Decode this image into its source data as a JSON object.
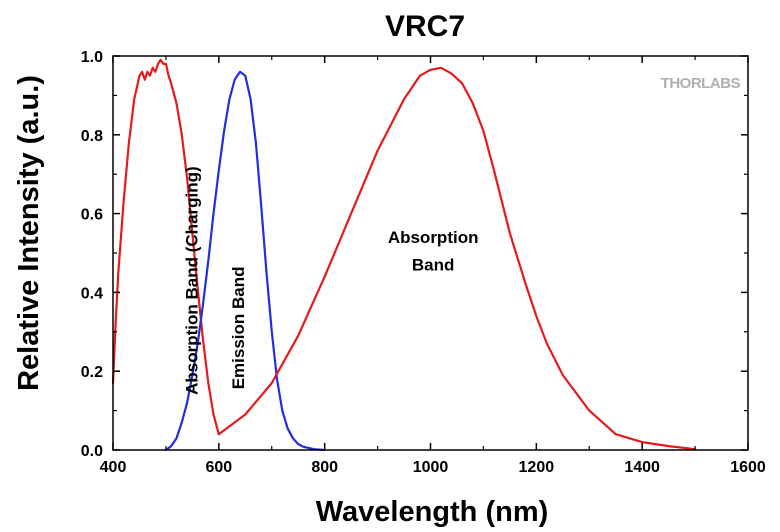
{
  "chart_data": {
    "type": "line",
    "title": "VRC7",
    "xlabel": "Wavelength (nm)",
    "ylabel": "Relative Intensity (a.u.)",
    "xlim": [
      400,
      1600
    ],
    "ylim": [
      0,
      1.0
    ],
    "xticks": [
      400,
      600,
      800,
      1000,
      1200,
      1400,
      1600
    ],
    "yticks": [
      0.0,
      0.2,
      0.4,
      0.6,
      0.8,
      1.0
    ],
    "xtick_labels": [
      "400",
      "600",
      "800",
      "1000",
      "1200",
      "1400",
      "1600"
    ],
    "ytick_labels": [
      "0.0",
      "0.2",
      "0.4",
      "0.6",
      "0.8",
      "1.0"
    ],
    "grid": false,
    "series": [
      {
        "color": "#e41a1c",
        "x": [
          400,
          405,
          410,
          420,
          430,
          440,
          450,
          455,
          460,
          465,
          470,
          475,
          480,
          485,
          490,
          495,
          500,
          505,
          510,
          520,
          530,
          540,
          550,
          560,
          570,
          580,
          590,
          600
        ],
        "y": [
          0.17,
          0.32,
          0.45,
          0.63,
          0.78,
          0.89,
          0.95,
          0.96,
          0.94,
          0.96,
          0.95,
          0.97,
          0.96,
          0.98,
          0.99,
          0.98,
          0.98,
          0.95,
          0.93,
          0.88,
          0.8,
          0.69,
          0.55,
          0.41,
          0.28,
          0.17,
          0.09,
          0.04
        ]
      },
      {
        "color": "#1f2fe0",
        "x": [
          500,
          510,
          520,
          530,
          540,
          550,
          560,
          570,
          580,
          590,
          600,
          610,
          620,
          630,
          640,
          650,
          660,
          670,
          680,
          690,
          700,
          710,
          720,
          730,
          740,
          750,
          760,
          780,
          800
        ],
        "y": [
          0.0,
          0.01,
          0.03,
          0.07,
          0.12,
          0.19,
          0.27,
          0.37,
          0.48,
          0.6,
          0.71,
          0.81,
          0.89,
          0.94,
          0.96,
          0.95,
          0.89,
          0.78,
          0.62,
          0.45,
          0.3,
          0.18,
          0.1,
          0.055,
          0.03,
          0.015,
          0.008,
          0.002,
          0.0
        ]
      },
      {
        "color": "#e41a1c",
        "x": [
          600,
          650,
          700,
          750,
          800,
          850,
          900,
          950,
          980,
          1000,
          1020,
          1040,
          1060,
          1080,
          1100,
          1120,
          1150,
          1180,
          1200,
          1220,
          1250,
          1300,
          1350,
          1400,
          1450,
          1500
        ],
        "y": [
          0.04,
          0.09,
          0.17,
          0.29,
          0.44,
          0.6,
          0.76,
          0.89,
          0.95,
          0.965,
          0.97,
          0.955,
          0.93,
          0.88,
          0.81,
          0.71,
          0.55,
          0.42,
          0.34,
          0.27,
          0.19,
          0.1,
          0.04,
          0.02,
          0.01,
          0.002
        ]
      }
    ],
    "annotations": [
      {
        "text": "Absorption Band (Charging)",
        "x": 560,
        "y": 0.43,
        "rotation": -90
      },
      {
        "text": "Emission Band",
        "x": 648,
        "y": 0.31,
        "rotation": -90
      },
      {
        "text": "Absorption",
        "x": 1005,
        "y": 0.525
      },
      {
        "text": "Band",
        "x": 1005,
        "y": 0.455
      }
    ],
    "watermark": "THORLABS"
  }
}
